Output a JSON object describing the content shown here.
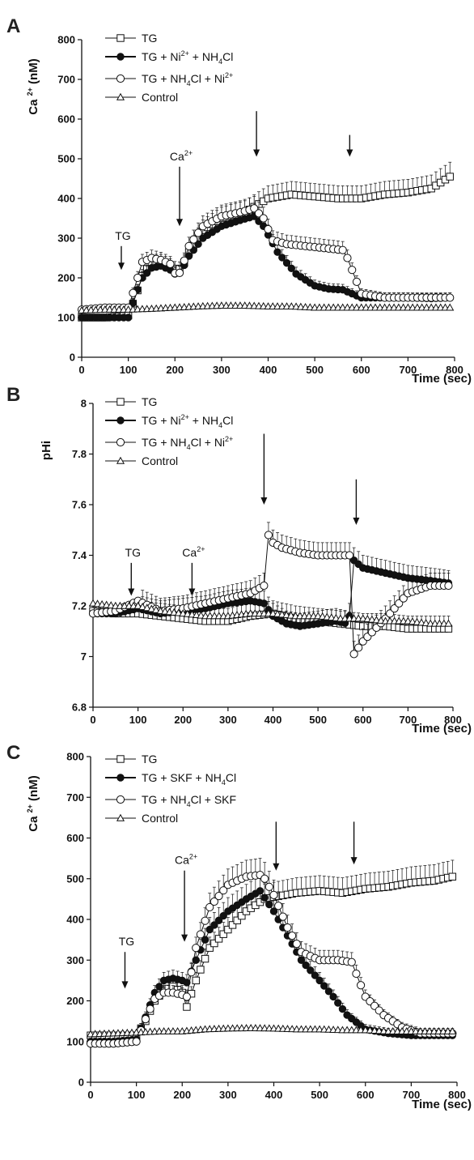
{
  "chart_data": [
    {
      "type": "line",
      "panel": "A",
      "ylabel": "Ca 2+ (nM)",
      "xlabel": "Time (sec)",
      "xlim": [
        0,
        800
      ],
      "ylim": [
        0,
        800
      ],
      "xticks": [
        0,
        100,
        200,
        300,
        400,
        500,
        600,
        700,
        800
      ],
      "yticks": [
        0,
        100,
        200,
        300,
        400,
        500,
        600,
        700,
        800
      ],
      "legend_position": "top-left",
      "series": [
        {
          "name": "TG",
          "marker": "open-square",
          "x": [
            0,
            50,
            100,
            115,
            130,
            150,
            170,
            190,
            205,
            215,
            230,
            260,
            300,
            350,
            400,
            450,
            500,
            550,
            600,
            650,
            700,
            750,
            790
          ],
          "y": [
            100,
            100,
            105,
            150,
            205,
            240,
            240,
            230,
            220,
            225,
            265,
            320,
            350,
            365,
            400,
            410,
            405,
            400,
            400,
            410,
            415,
            425,
            455
          ]
        },
        {
          "name": "TG + Ni2+ + NH4Cl",
          "marker": "filled-circle",
          "x": [
            0,
            50,
            100,
            115,
            130,
            150,
            170,
            190,
            205,
            215,
            230,
            260,
            300,
            340,
            370,
            390,
            420,
            460,
            500,
            530,
            560,
            570,
            580,
            600,
            650,
            700,
            750,
            790
          ],
          "y": [
            100,
            100,
            100,
            155,
            200,
            225,
            230,
            220,
            205,
            220,
            255,
            300,
            330,
            345,
            355,
            330,
            265,
            210,
            180,
            172,
            170,
            165,
            160,
            150,
            150,
            150,
            148,
            150
          ]
        },
        {
          "name": "TG + NH4Cl + Ni2+",
          "marker": "open-circle",
          "x": [
            0,
            50,
            100,
            115,
            130,
            150,
            170,
            190,
            205,
            215,
            230,
            260,
            300,
            340,
            370,
            390,
            410,
            440,
            480,
            520,
            560,
            570,
            580,
            600,
            650,
            700,
            750,
            790
          ],
          "y": [
            120,
            125,
            125,
            180,
            240,
            250,
            245,
            235,
            200,
            225,
            280,
            330,
            355,
            365,
            375,
            350,
            295,
            285,
            280,
            275,
            270,
            250,
            220,
            160,
            150,
            150,
            150,
            150
          ]
        },
        {
          "name": "Control",
          "marker": "open-triangle",
          "x": [
            0,
            50,
            100,
            150,
            200,
            250,
            300,
            350,
            400,
            450,
            500,
            550,
            600,
            650,
            700,
            750,
            790
          ],
          "y": [
            118,
            120,
            120,
            122,
            125,
            128,
            130,
            130,
            128,
            128,
            125,
            125,
            125,
            125,
            125,
            125,
            125
          ]
        }
      ],
      "annotations": [
        {
          "text": "TG",
          "x": 85,
          "y_start": 280,
          "y_end": 220
        },
        {
          "text": "Ca2+",
          "x": 210,
          "y_start": 480,
          "y_end": 330
        },
        {
          "text": "",
          "x": 375,
          "y_start": 620,
          "y_end": 505
        },
        {
          "text": "",
          "x": 575,
          "y_start": 560,
          "y_end": 505
        }
      ]
    },
    {
      "type": "line",
      "panel": "B",
      "ylabel": "pHi",
      "xlabel": "Time (sec)",
      "xlim": [
        0,
        800
      ],
      "ylim": [
        6.8,
        8.0
      ],
      "xticks": [
        0,
        100,
        200,
        300,
        400,
        500,
        600,
        700,
        800
      ],
      "yticks": [
        6.8,
        7.0,
        7.2,
        7.4,
        7.6,
        7.8,
        8.0
      ],
      "ytick_labels": [
        "6.8",
        "7",
        "7.2",
        "7.4",
        "7.6",
        "7.8",
        "8"
      ],
      "legend_position": "top-left",
      "series": [
        {
          "name": "TG",
          "marker": "open-square",
          "x": [
            0,
            50,
            100,
            150,
            200,
            250,
            300,
            350,
            400,
            450,
            500,
            550,
            600,
            650,
            700,
            750,
            790
          ],
          "y": [
            7.18,
            7.17,
            7.17,
            7.16,
            7.15,
            7.14,
            7.14,
            7.16,
            7.17,
            7.15,
            7.14,
            7.13,
            7.12,
            7.12,
            7.11,
            7.11,
            7.11
          ]
        },
        {
          "name": "TG + Ni2+ + NH4Cl",
          "marker": "filled-circle",
          "x": [
            0,
            50,
            100,
            150,
            200,
            250,
            300,
            350,
            380,
            400,
            430,
            460,
            500,
            540,
            565,
            575,
            580,
            600,
            650,
            700,
            750,
            790
          ],
          "y": [
            7.17,
            7.17,
            7.19,
            7.17,
            7.18,
            7.19,
            7.21,
            7.22,
            7.21,
            7.16,
            7.13,
            7.12,
            7.13,
            7.14,
            7.13,
            7.19,
            7.38,
            7.35,
            7.33,
            7.31,
            7.3,
            7.29
          ]
        },
        {
          "name": "TG + NH4Cl + Ni2+",
          "marker": "open-circle",
          "x": [
            0,
            50,
            100,
            150,
            200,
            250,
            300,
            350,
            380,
            390,
            400,
            420,
            460,
            500,
            540,
            570,
            580,
            600,
            650,
            700,
            750,
            790
          ],
          "y": [
            7.17,
            7.18,
            7.22,
            7.18,
            7.19,
            7.21,
            7.23,
            7.25,
            7.28,
            7.48,
            7.45,
            7.43,
            7.41,
            7.4,
            7.4,
            7.4,
            7.01,
            7.06,
            7.15,
            7.25,
            7.28,
            7.28
          ]
        },
        {
          "name": "Control",
          "marker": "open-triangle",
          "x": [
            0,
            50,
            100,
            150,
            200,
            250,
            300,
            350,
            400,
            450,
            500,
            550,
            600,
            650,
            700,
            750,
            790
          ],
          "y": [
            7.21,
            7.2,
            7.2,
            7.18,
            7.17,
            7.16,
            7.16,
            7.17,
            7.17,
            7.16,
            7.16,
            7.15,
            7.15,
            7.14,
            7.14,
            7.13,
            7.13
          ]
        }
      ],
      "annotations": [
        {
          "text": "TG",
          "x": 85,
          "y_start": 7.37,
          "y_end": 7.24
        },
        {
          "text": "Ca2+",
          "x": 220,
          "y_start": 7.37,
          "y_end": 7.24
        },
        {
          "text": "",
          "x": 380,
          "y_start": 7.88,
          "y_end": 7.6
        },
        {
          "text": "",
          "x": 585,
          "y_start": 7.7,
          "y_end": 7.52
        }
      ]
    },
    {
      "type": "line",
      "panel": "C",
      "ylabel": "Ca 2+ (nM)",
      "xlabel": "Time (sec)",
      "xlim": [
        0,
        800
      ],
      "ylim": [
        0,
        800
      ],
      "xticks": [
        0,
        100,
        200,
        300,
        400,
        500,
        600,
        700,
        800
      ],
      "yticks": [
        0,
        100,
        200,
        300,
        400,
        500,
        600,
        700,
        800
      ],
      "legend_position": "top-left",
      "series": [
        {
          "name": "TG",
          "marker": "open-square",
          "x": [
            0,
            50,
            100,
            120,
            140,
            160,
            180,
            200,
            210,
            230,
            260,
            300,
            340,
            380,
            400,
            450,
            500,
            550,
            600,
            650,
            700,
            750,
            790
          ],
          "y": [
            115,
            115,
            115,
            150,
            200,
            225,
            235,
            220,
            185,
            250,
            330,
            375,
            420,
            450,
            455,
            465,
            470,
            465,
            475,
            480,
            490,
            495,
            505
          ]
        },
        {
          "name": "TG + SKF + NH4Cl",
          "marker": "filled-circle",
          "x": [
            0,
            50,
            100,
            120,
            140,
            160,
            180,
            200,
            210,
            230,
            260,
            300,
            340,
            370,
            400,
            430,
            460,
            500,
            530,
            560,
            600,
            650,
            700,
            750,
            790
          ],
          "y": [
            100,
            100,
            105,
            160,
            220,
            250,
            255,
            250,
            245,
            300,
            375,
            420,
            450,
            470,
            420,
            360,
            300,
            250,
            210,
            165,
            130,
            120,
            115,
            115,
            115
          ]
        },
        {
          "name": "TG + NH4Cl + SKF",
          "marker": "open-circle",
          "x": [
            0,
            50,
            100,
            120,
            140,
            160,
            180,
            200,
            210,
            230,
            260,
            300,
            340,
            375,
            400,
            430,
            460,
            500,
            540,
            570,
            600,
            640,
            680,
            720,
            760,
            790
          ],
          "y": [
            95,
            95,
            100,
            155,
            205,
            220,
            220,
            215,
            210,
            330,
            430,
            485,
            505,
            510,
            460,
            380,
            320,
            300,
            300,
            295,
            210,
            165,
            135,
            120,
            120,
            120
          ]
        },
        {
          "name": "Control",
          "marker": "open-triangle",
          "x": [
            0,
            50,
            100,
            150,
            200,
            250,
            300,
            350,
            400,
            450,
            500,
            550,
            600,
            650,
            700,
            750,
            790
          ],
          "y": [
            118,
            120,
            122,
            125,
            125,
            130,
            132,
            133,
            132,
            130,
            130,
            128,
            128,
            125,
            125,
            125,
            125
          ]
        }
      ],
      "annotations": [
        {
          "text": "TG",
          "x": 75,
          "y_start": 320,
          "y_end": 230
        },
        {
          "text": "Ca2+",
          "x": 205,
          "y_start": 520,
          "y_end": 345
        },
        {
          "text": "",
          "x": 405,
          "y_start": 640,
          "y_end": 520
        },
        {
          "text": "",
          "x": 575,
          "y_start": 640,
          "y_end": 535
        }
      ]
    }
  ],
  "panels": [
    {
      "letter": "A",
      "ylabel": "Ca 2+ (nM)",
      "xlabel": "Time (sec)",
      "legend": [
        "TG",
        "TG + Ni2+ + NH4Cl",
        "TG + NH4Cl + Ni2+",
        "Control"
      ],
      "annotations": [
        "TG",
        "Ca2+"
      ]
    },
    {
      "letter": "B",
      "ylabel": "pHi",
      "xlabel": "Time (sec)",
      "legend": [
        "TG",
        "TG + Ni2+ + NH4Cl",
        "TG + NH4Cl + Ni2+",
        "Control"
      ],
      "annotations": [
        "TG",
        "Ca2+"
      ]
    },
    {
      "letter": "C",
      "ylabel": "Ca 2+ (nM)",
      "xlabel": "Time (sec)",
      "legend": [
        "TG",
        "TG + SKF + NH4Cl",
        "TG + NH4Cl + SKF",
        "Control"
      ],
      "annotations": [
        "TG",
        "Ca2+"
      ]
    }
  ]
}
